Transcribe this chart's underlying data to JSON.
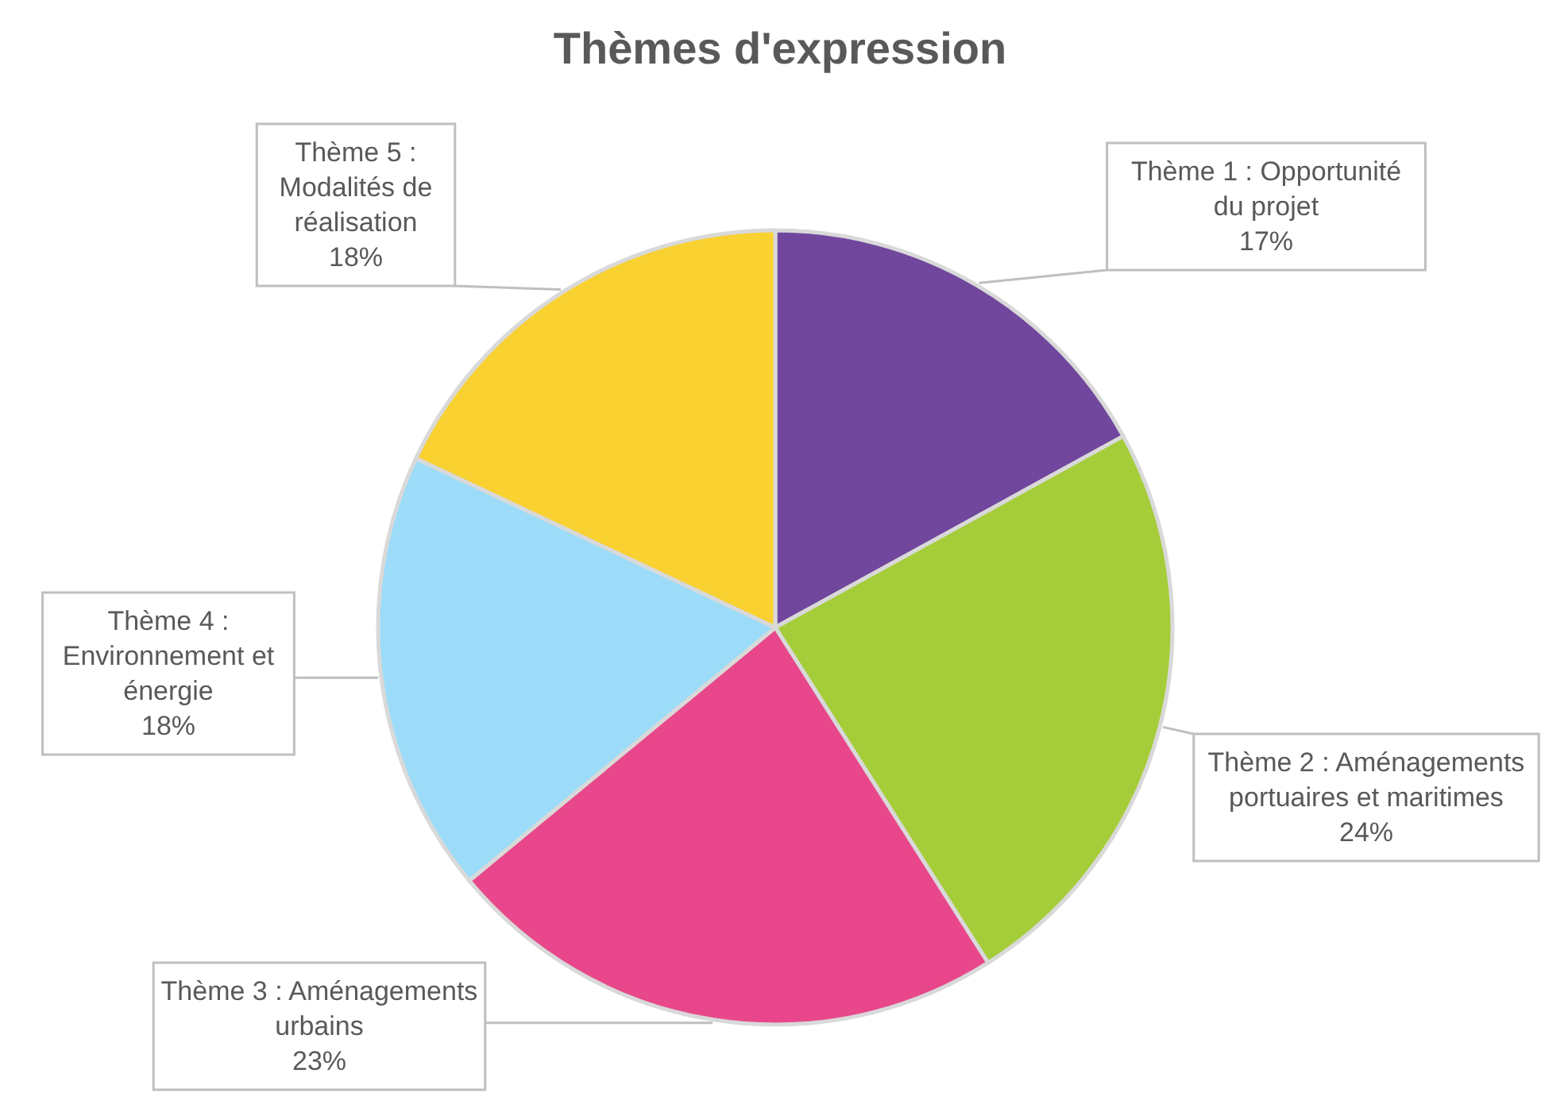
{
  "chart_data": {
    "type": "pie",
    "title": "Thèmes d'expression",
    "categories": [
      "Thème 1 : Opportunité du projet",
      "Thème 2 : Aménagements portuaires et maritimes",
      "Thème 3 : Aménagements urbains",
      "Thème 4 : Environnement et énergie",
      "Thème 5 : Modalités de réalisation"
    ],
    "values": [
      17,
      24,
      23,
      18,
      18
    ],
    "value_labels": [
      "17%",
      "24%",
      "23%",
      "18%",
      "18%"
    ],
    "colors": [
      "#71479d",
      "#a5cd39",
      "#e8488b",
      "#9cdcf8",
      "#f9d131"
    ],
    "legend": false
  }
}
